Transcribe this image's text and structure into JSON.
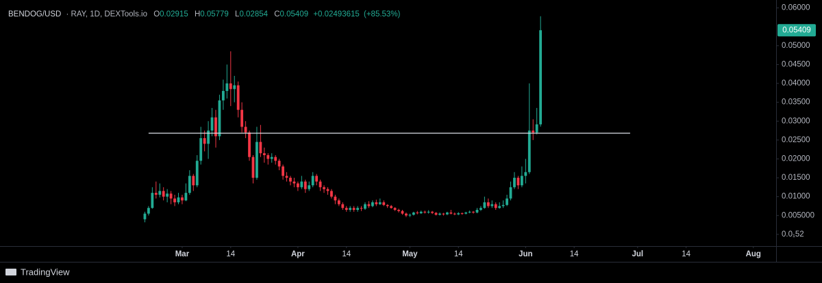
{
  "chart_data": {
    "type": "candlestick",
    "title": "BENDOG/USD",
    "subtitle": "· RAY, 1D, DEXTools.io",
    "ohlc_letters": [
      "O",
      "H",
      "L",
      "C"
    ],
    "change": "+0.02493615",
    "change_pct": "(+85.53%)",
    "up_color": "#22ab94",
    "down_color": "#f23645",
    "hline": {
      "value": 0.0268,
      "x": [
        -9,
        120
      ],
      "color": "#e0e3eb"
    },
    "xlim": [
      -48.8,
      159.1
    ],
    "ylim": [
      -0.0031,
      0.0621
    ],
    "xticks": [
      {
        "value": 0,
        "label": "Mar"
      },
      {
        "value": 13,
        "label": "14"
      },
      {
        "value": 31,
        "label": "Apr"
      },
      {
        "value": 44,
        "label": "14"
      },
      {
        "value": 61,
        "label": "May"
      },
      {
        "value": 74,
        "label": "14"
      },
      {
        "value": 92,
        "label": "Jun"
      },
      {
        "value": 105,
        "label": "14"
      },
      {
        "value": 122,
        "label": "Jul"
      },
      {
        "value": 135,
        "label": "14"
      },
      {
        "value": 153,
        "label": "Aug"
      }
    ],
    "yticks": [
      {
        "value": 5.2e-06,
        "label": "0.0₁52"
      },
      {
        "value": 0.005,
        "label": "0.005000"
      },
      {
        "value": 0.01,
        "label": "0.01000"
      },
      {
        "value": 0.015,
        "label": "0.01500"
      },
      {
        "value": 0.02,
        "label": "0.02000"
      },
      {
        "value": 0.025,
        "label": "0.02500"
      },
      {
        "value": 0.03,
        "label": "0.03000"
      },
      {
        "value": 0.035,
        "label": "0.03500"
      },
      {
        "value": 0.04,
        "label": "0.04000"
      },
      {
        "value": 0.045,
        "label": "0.04500"
      },
      {
        "value": 0.05,
        "label": "0.05000"
      },
      {
        "value": 0.06,
        "label": "0.06000"
      }
    ],
    "grid": false,
    "x": [
      -10,
      -9,
      -8,
      -7,
      -6,
      -5,
      -4,
      -3,
      -2,
      -1,
      0,
      1,
      2,
      3,
      4,
      5,
      6,
      7,
      8,
      9,
      10,
      11,
      12,
      13,
      14,
      15,
      16,
      17,
      18,
      19,
      20,
      21,
      22,
      23,
      24,
      25,
      26,
      27,
      28,
      29,
      30,
      31,
      32,
      33,
      34,
      35,
      36,
      37,
      38,
      39,
      40,
      41,
      42,
      43,
      44,
      45,
      46,
      47,
      48,
      49,
      50,
      51,
      52,
      53,
      54,
      55,
      56,
      57,
      58,
      59,
      60,
      61,
      62,
      63,
      64,
      65,
      66,
      67,
      68,
      69,
      70,
      71,
      72,
      73,
      74,
      75,
      76,
      77,
      78,
      79,
      80,
      81,
      82,
      83,
      84,
      85,
      86,
      87,
      88,
      89,
      90,
      91,
      92,
      93,
      94,
      95,
      96
    ],
    "open": [
      0.004,
      0.0055,
      0.007,
      0.011,
      0.0105,
      0.0115,
      0.01,
      0.0108,
      0.0095,
      0.0085,
      0.0098,
      0.009,
      0.011,
      0.0155,
      0.013,
      0.0195,
      0.0255,
      0.024,
      0.0275,
      0.031,
      0.026,
      0.0355,
      0.038,
      0.04,
      0.0385,
      0.0395,
      0.033,
      0.0285,
      0.027,
      0.0205,
      0.015,
      0.0245,
      0.0215,
      0.021,
      0.02,
      0.0205,
      0.0195,
      0.018,
      0.0155,
      0.015,
      0.014,
      0.0135,
      0.0125,
      0.014,
      0.012,
      0.013,
      0.0155,
      0.014,
      0.0125,
      0.012,
      0.0115,
      0.01,
      0.009,
      0.008,
      0.007,
      0.0065,
      0.007,
      0.0065,
      0.007,
      0.0068,
      0.008,
      0.0075,
      0.0085,
      0.008,
      0.0085,
      0.0078,
      0.0075,
      0.007,
      0.0065,
      0.0062,
      0.0055,
      0.005,
      0.0052,
      0.0058,
      0.0056,
      0.006,
      0.0058,
      0.006,
      0.0057,
      0.0052,
      0.0055,
      0.0053,
      0.0058,
      0.0055,
      0.0053,
      0.0056,
      0.0055,
      0.0058,
      0.006,
      0.0058,
      0.0065,
      0.007,
      0.0085,
      0.0075,
      0.008,
      0.007,
      0.0075,
      0.0078,
      0.0095,
      0.0125,
      0.015,
      0.013,
      0.0155,
      0.0165,
      0.0275,
      0.027,
      0.02915
    ],
    "high": [
      0.006,
      0.0075,
      0.0125,
      0.014,
      0.0135,
      0.0125,
      0.012,
      0.0115,
      0.0105,
      0.011,
      0.0105,
      0.0135,
      0.017,
      0.016,
      0.021,
      0.0285,
      0.0275,
      0.03,
      0.0335,
      0.033,
      0.037,
      0.041,
      0.045,
      0.0485,
      0.042,
      0.0405,
      0.035,
      0.03,
      0.0275,
      0.021,
      0.0285,
      0.029,
      0.023,
      0.0215,
      0.0215,
      0.021,
      0.02,
      0.0185,
      0.0165,
      0.0155,
      0.015,
      0.014,
      0.0155,
      0.0145,
      0.014,
      0.0165,
      0.016,
      0.0145,
      0.013,
      0.0125,
      0.012,
      0.0105,
      0.0095,
      0.0085,
      0.0075,
      0.0075,
      0.0075,
      0.0075,
      0.0075,
      0.0085,
      0.0088,
      0.009,
      0.0092,
      0.0095,
      0.009,
      0.008,
      0.0078,
      0.0072,
      0.0068,
      0.0065,
      0.0058,
      0.0055,
      0.006,
      0.0062,
      0.0063,
      0.0063,
      0.0064,
      0.0062,
      0.0059,
      0.0058,
      0.0057,
      0.006,
      0.0065,
      0.0058,
      0.0059,
      0.0058,
      0.006,
      0.0063,
      0.0062,
      0.007,
      0.0075,
      0.01,
      0.0095,
      0.009,
      0.0085,
      0.0085,
      0.009,
      0.0105,
      0.014,
      0.0165,
      0.0155,
      0.018,
      0.02,
      0.04,
      0.0305,
      0.0335,
      0.05779
    ],
    "low": [
      0.0032,
      0.005,
      0.0068,
      0.0095,
      0.0098,
      0.009,
      0.0085,
      0.008,
      0.0075,
      0.008,
      0.008,
      0.0088,
      0.0105,
      0.0115,
      0.0125,
      0.0185,
      0.022,
      0.02,
      0.026,
      0.023,
      0.025,
      0.033,
      0.036,
      0.034,
      0.035,
      0.031,
      0.027,
      0.0255,
      0.0195,
      0.0135,
      0.0145,
      0.0205,
      0.019,
      0.0185,
      0.019,
      0.0185,
      0.017,
      0.0145,
      0.014,
      0.013,
      0.0125,
      0.0115,
      0.012,
      0.011,
      0.0115,
      0.0125,
      0.013,
      0.0115,
      0.011,
      0.0105,
      0.0095,
      0.008,
      0.0075,
      0.0065,
      0.006,
      0.006,
      0.006,
      0.006,
      0.0062,
      0.0065,
      0.007,
      0.0072,
      0.0075,
      0.0078,
      0.0075,
      0.007,
      0.0068,
      0.0062,
      0.0058,
      0.0052,
      0.0046,
      0.0046,
      0.005,
      0.0053,
      0.0054,
      0.0055,
      0.0055,
      0.0054,
      0.005,
      0.005,
      0.005,
      0.0051,
      0.0053,
      0.0051,
      0.0051,
      0.0052,
      0.0053,
      0.0056,
      0.0055,
      0.0056,
      0.0062,
      0.0068,
      0.007,
      0.007,
      0.0065,
      0.0068,
      0.007,
      0.0075,
      0.009,
      0.012,
      0.012,
      0.0125,
      0.0135,
      0.016,
      0.025,
      0.0265,
      0.02854
    ],
    "close": [
      0.0055,
      0.007,
      0.011,
      0.0105,
      0.0115,
      0.01,
      0.0108,
      0.0095,
      0.0085,
      0.0098,
      0.009,
      0.011,
      0.0155,
      0.013,
      0.0195,
      0.0255,
      0.024,
      0.0275,
      0.031,
      0.026,
      0.0355,
      0.038,
      0.04,
      0.0385,
      0.0395,
      0.033,
      0.0285,
      0.027,
      0.0205,
      0.015,
      0.0245,
      0.0215,
      0.021,
      0.02,
      0.0205,
      0.0195,
      0.018,
      0.0155,
      0.015,
      0.014,
      0.0135,
      0.0125,
      0.014,
      0.012,
      0.013,
      0.0155,
      0.014,
      0.0125,
      0.012,
      0.0115,
      0.01,
      0.009,
      0.008,
      0.007,
      0.0065,
      0.007,
      0.0065,
      0.007,
      0.0068,
      0.008,
      0.0075,
      0.0085,
      0.008,
      0.0085,
      0.0078,
      0.0075,
      0.007,
      0.0065,
      0.0062,
      0.0055,
      0.005,
      0.0052,
      0.0058,
      0.0056,
      0.006,
      0.0058,
      0.006,
      0.0057,
      0.0052,
      0.0055,
      0.0053,
      0.0058,
      0.0055,
      0.0053,
      0.0056,
      0.0055,
      0.0058,
      0.006,
      0.0058,
      0.0065,
      0.007,
      0.0085,
      0.0075,
      0.008,
      0.007,
      0.0075,
      0.0078,
      0.0095,
      0.0125,
      0.015,
      0.013,
      0.0155,
      0.0165,
      0.0275,
      0.027,
      0.02915,
      0.05409
    ]
  },
  "branding": "TradingView"
}
